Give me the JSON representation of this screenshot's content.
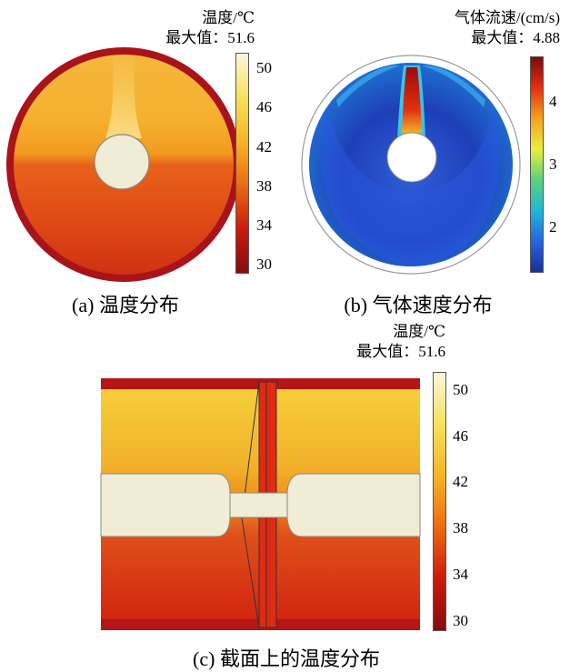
{
  "panel_a": {
    "colorbar_title": "温度/℃",
    "max_label": "最大值：51.6",
    "ticks": [
      "50",
      "46",
      "42",
      "38",
      "34",
      "30"
    ],
    "caption": "(a) 温度分布",
    "colors": [
      "#fbf6dc",
      "#f6e15a",
      "#f5b526",
      "#ec6a12",
      "#cc1a0c",
      "#830d10"
    ]
  },
  "panel_b": {
    "colorbar_title": "气体流速/(cm/s)",
    "max_label": "最大值：4.88",
    "ticks": [
      "4",
      "3",
      "2"
    ],
    "caption": "(b) 气体速度分布",
    "colors": [
      "#7a0a0a",
      "#e2300f",
      "#f6a21e",
      "#e9ef3a",
      "#59d37a",
      "#1fb8d8",
      "#2466e0",
      "#1a2f9a"
    ]
  },
  "panel_c": {
    "colorbar_title": "温度/℃",
    "max_label": "最大值：51.6",
    "ticks": [
      "50",
      "46",
      "42",
      "38",
      "34",
      "30"
    ],
    "caption": "(c) 截面上的温度分布"
  }
}
